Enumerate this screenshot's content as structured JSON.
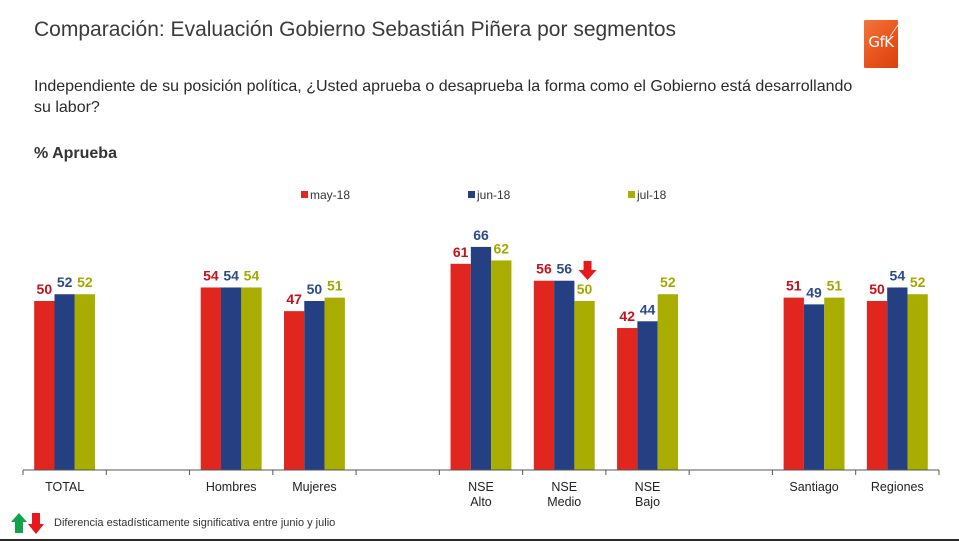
{
  "header": {
    "title": "Comparación: Evaluación Gobierno Sebastián Piñera por segmentos",
    "question": "Independiente de su posición política, ¿Usted aprueba o desaprueba la forma como el Gobierno está desarrollando su labor?",
    "metric_label": "% Aprueba",
    "logo_text": "GfK"
  },
  "footnote": {
    "up_icon": "arrow-up-green",
    "down_icon": "arrow-down-red",
    "text": "Diferencia estadísticamente significativa entre junio y julio"
  },
  "colors": {
    "may": "#e0261f",
    "jun": "#243f82",
    "jul": "#a8ad00",
    "label_may": "#c8101a",
    "label_jun": "#2c4a8c",
    "label_jul": "#a3a800",
    "sig_down": "#e8191c",
    "sig_up": "#12a24a"
  },
  "chart_data": {
    "type": "bar",
    "title": "% Aprueba",
    "xlabel": "",
    "ylabel": "",
    "ylim": [
      0,
      70
    ],
    "grid": false,
    "legend_position": "top",
    "categories": [
      [
        "TOTAL"
      ],
      [],
      [
        "Hombres"
      ],
      [
        "Mujeres"
      ],
      [],
      [
        "NSE",
        "Alto"
      ],
      [
        "NSE",
        "Medio"
      ],
      [
        "NSE",
        "Bajo"
      ],
      [],
      [
        "Santiago"
      ],
      [
        "Regiones"
      ]
    ],
    "series": [
      {
        "name": "may-18",
        "color_key": "may",
        "values": [
          50,
          null,
          54,
          47,
          null,
          61,
          56,
          42,
          null,
          51,
          50
        ]
      },
      {
        "name": "jun-18",
        "color_key": "jun",
        "values": [
          52,
          null,
          54,
          50,
          null,
          66,
          56,
          44,
          null,
          49,
          54
        ]
      },
      {
        "name": "jul-18",
        "color_key": "jul",
        "values": [
          52,
          null,
          54,
          51,
          null,
          62,
          50,
          52,
          null,
          51,
          52
        ]
      }
    ],
    "annotations": [
      {
        "category_index": 6,
        "series": "jul-18",
        "type": "significant-decrease",
        "icon": "arrow-down-red"
      }
    ]
  }
}
